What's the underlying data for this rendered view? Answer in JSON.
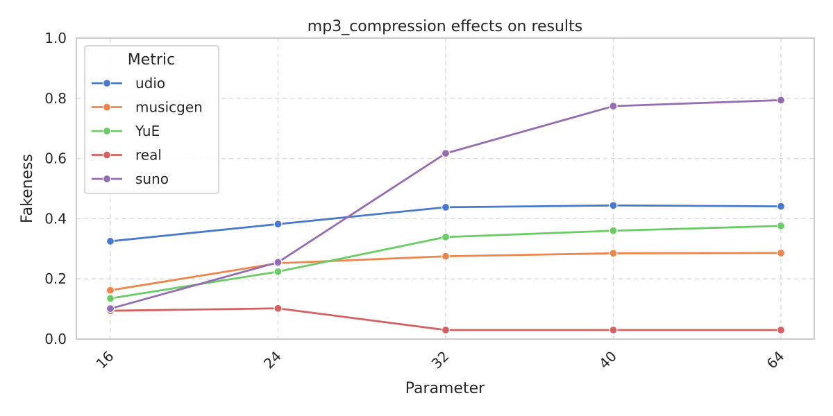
{
  "chart_data": {
    "type": "line",
    "title": "mp3_compression effects on results",
    "xlabel": "Parameter",
    "ylabel": "Fakeness",
    "categories": [
      "16",
      "24",
      "32",
      "40",
      "64"
    ],
    "ylim": [
      0,
      1.0
    ],
    "yticks": [
      "0.0",
      "0.2",
      "0.4",
      "0.6",
      "0.8",
      "1.0"
    ],
    "grid": true,
    "legend": {
      "title": "Metric",
      "placement": "top-left"
    },
    "series": [
      {
        "name": "udio",
        "color": "#4878cf",
        "values": [
          0.325,
          0.382,
          0.438,
          0.444,
          0.441
        ]
      },
      {
        "name": "musicgen",
        "color": "#ee854a",
        "values": [
          0.162,
          0.252,
          0.275,
          0.285,
          0.286
        ]
      },
      {
        "name": "YuE",
        "color": "#6acc64",
        "values": [
          0.135,
          0.224,
          0.339,
          0.36,
          0.376
        ]
      },
      {
        "name": "real",
        "color": "#d65f5f",
        "values": [
          0.094,
          0.102,
          0.03,
          0.03,
          0.03
        ]
      },
      {
        "name": "suno",
        "color": "#956cb4",
        "values": [
          0.101,
          0.255,
          0.617,
          0.774,
          0.794
        ]
      }
    ]
  }
}
